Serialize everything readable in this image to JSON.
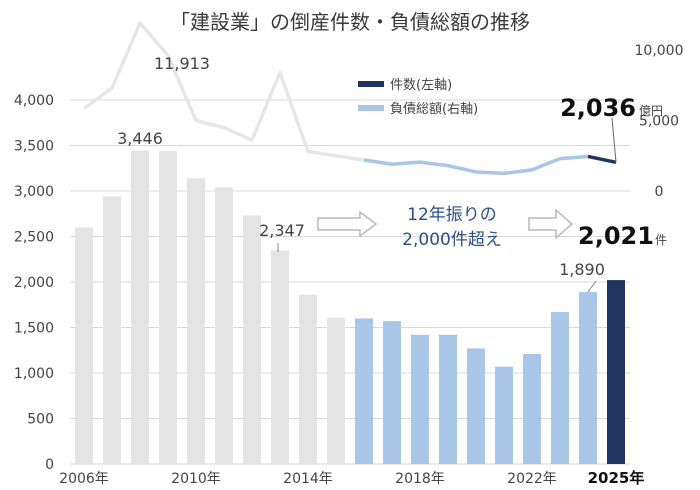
{
  "title": "「建設業」の倒産件数・負債総額の推移",
  "legend": {
    "count": "件数(左軸)",
    "debt": "負債総額(右軸)"
  },
  "callout": {
    "line1": "12年振りの",
    "line2": "2,000件超え"
  },
  "units": {
    "count": "件",
    "debt": "億円"
  },
  "colors": {
    "past": "#e4e4e4",
    "recent": "#a9c6e8",
    "current": "#1f3560",
    "text": "#444444",
    "callout_text": "#2c4f88"
  },
  "chart_data": {
    "type": "bar",
    "x": [
      "2006年",
      "2007年",
      "2008年",
      "2009年",
      "2010年",
      "2011年",
      "2012年",
      "2013年",
      "2014年",
      "2015年",
      "2016年",
      "2017年",
      "2018年",
      "2019年",
      "2020年",
      "2021年",
      "2022年",
      "2023年",
      "2024年",
      "2025年"
    ],
    "x_tick_labels": [
      "2006年",
      "2010年",
      "2014年",
      "2018年",
      "2022年",
      "2025年"
    ],
    "y_left_ticks": [
      0,
      500,
      1000,
      1500,
      2000,
      2500,
      3000,
      3500,
      4000
    ],
    "y_left_tick_labels": [
      "0",
      "500",
      "1,000",
      "1,500",
      "2,000",
      "2,500",
      "3,000",
      "3,500",
      "4,000"
    ],
    "y_left_lim": [
      0,
      4000
    ],
    "y_right_ticks": [
      0,
      5000,
      10000
    ],
    "y_right_tick_labels": [
      "0",
      "5,000",
      "10,000"
    ],
    "y_right_lim": [
      0,
      10000
    ],
    "series": [
      {
        "name": "件数(左軸)",
        "axis": "left",
        "type": "bar",
        "values": [
          2600,
          2940,
          3446,
          3440,
          3140,
          3040,
          2730,
          2347,
          1860,
          1610,
          1600,
          1570,
          1420,
          1420,
          1270,
          1070,
          1210,
          1670,
          1890,
          2021
        ]
      },
      {
        "name": "負債総額(右軸)",
        "axis": "right",
        "type": "line",
        "values": [
          5850,
          7300,
          11913,
          9600,
          5000,
          4500,
          3600,
          8400,
          2800,
          2500,
          2200,
          1900,
          2050,
          1800,
          1350,
          1250,
          1500,
          2300,
          2450,
          2036
        ]
      }
    ],
    "data_labels": [
      {
        "series": 0,
        "index": 2,
        "text": "3,446"
      },
      {
        "series": 0,
        "index": 7,
        "text": "2,347"
      },
      {
        "series": 0,
        "index": 18,
        "text": "1,890"
      },
      {
        "series": 0,
        "index": 19,
        "text": "2,021"
      },
      {
        "series": 1,
        "index": 2,
        "text": "11,913"
      },
      {
        "series": 1,
        "index": 19,
        "text": "2,036"
      }
    ],
    "grid": true,
    "legend_position": "top-right"
  }
}
